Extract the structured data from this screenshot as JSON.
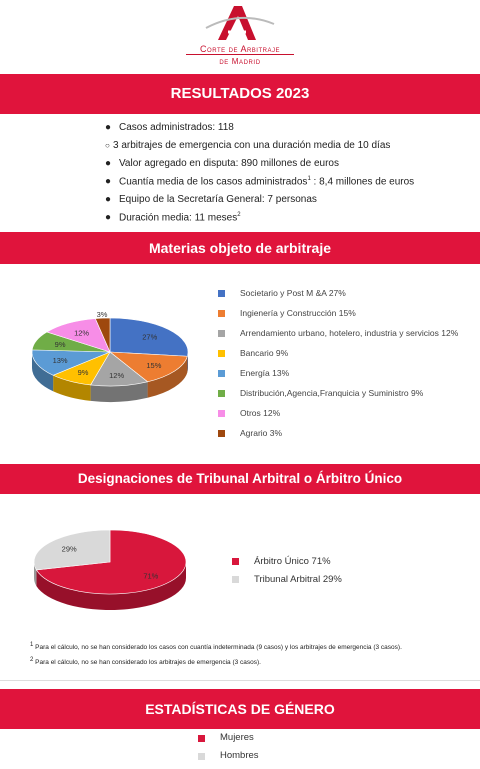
{
  "logo": {
    "line1": "Corte de Arbitraje",
    "line2": "de Madrid"
  },
  "section1": {
    "title": "RESULTADOS 2023",
    "facts": [
      {
        "text": "Casos administrados: 118",
        "sub": false
      },
      {
        "text": "3 arbitrajes de emergencia con una duración media de 10 días",
        "sub": true
      },
      {
        "text": "Valor agregado en disputa: 890 millones de euros",
        "sub": false
      },
      {
        "text": "Cuantía media de los casos administrados",
        "sup": "1",
        "after": " : 8,4 millones de euros",
        "sub": false
      },
      {
        "text": "Equipo de la Secretaría General: 7 personas",
        "sub": false
      },
      {
        "text": "Duración media: 11 meses",
        "sup": "2",
        "sub": false
      }
    ]
  },
  "section2": {
    "title": "Materias objeto de arbitraje"
  },
  "section3": {
    "title": "Designaciones de Tribunal Arbitral o Árbitro Único"
  },
  "section4": {
    "title": "ESTADÍSTICAS DE GÉNERO"
  },
  "chart_data": [
    {
      "type": "pie",
      "title": "Materias objeto de arbitraje",
      "categories": [
        "Societario y Post M &A",
        "Ingienería y Construcción",
        "Arrendamiento urbano, hotelero, industria y servicios",
        "Bancario",
        "Energía",
        "Distribución,Agencia,Franquicia y Suministro",
        "Otros",
        "Agrario"
      ],
      "values": [
        27,
        15,
        12,
        9,
        13,
        9,
        12,
        3
      ],
      "data_labels": [
        "27%",
        "15%",
        "12%",
        "9%",
        "13%",
        "9%",
        "12%",
        "3%"
      ],
      "legend_labels": [
        "Societario y Post M &A 27%",
        "Ingienería y Construcción 15%",
        "Arrendamiento urbano, hotelero, industria y servicios 12%",
        "Bancario 9%",
        "Energía 13%",
        "Distribución,Agencia,Franquicia y Suministro 9%",
        "Otros 12%",
        "Agrario 3%"
      ],
      "colors": [
        "#4472c4",
        "#ed7d31",
        "#a5a5a5",
        "#ffc000",
        "#5b9bd5",
        "#70ad47",
        "#f78de7",
        "#9e480e"
      ],
      "legend": "right"
    },
    {
      "type": "pie",
      "title": "Designaciones de Tribunal Arbitral o Árbitro Único",
      "categories": [
        "Árbitro Único",
        "Tribunal Arbitral"
      ],
      "values": [
        71,
        29
      ],
      "data_labels": [
        "71%",
        "29%"
      ],
      "legend_labels": [
        "Árbitro Único 71%",
        "Tribunal Arbitral 29%"
      ],
      "colors": [
        "#d8173c",
        "#d9d9d9"
      ],
      "legend": "right"
    }
  ],
  "footnotes": [
    {
      "num": "1",
      "text": "Para el cálculo, no se han considerado los casos con cuantía indeterminada (9 casos) y los arbitrajes de emergencia (3 casos)."
    },
    {
      "num": "2",
      "text": "Para el cálculo, no se han considerado los arbitrajes de emergencia (3 casos)."
    }
  ],
  "gender": {
    "legend": [
      {
        "label": "Mujeres",
        "color": "#d8173c"
      },
      {
        "label": "Hombres",
        "color": "#d9d9d9"
      }
    ]
  }
}
